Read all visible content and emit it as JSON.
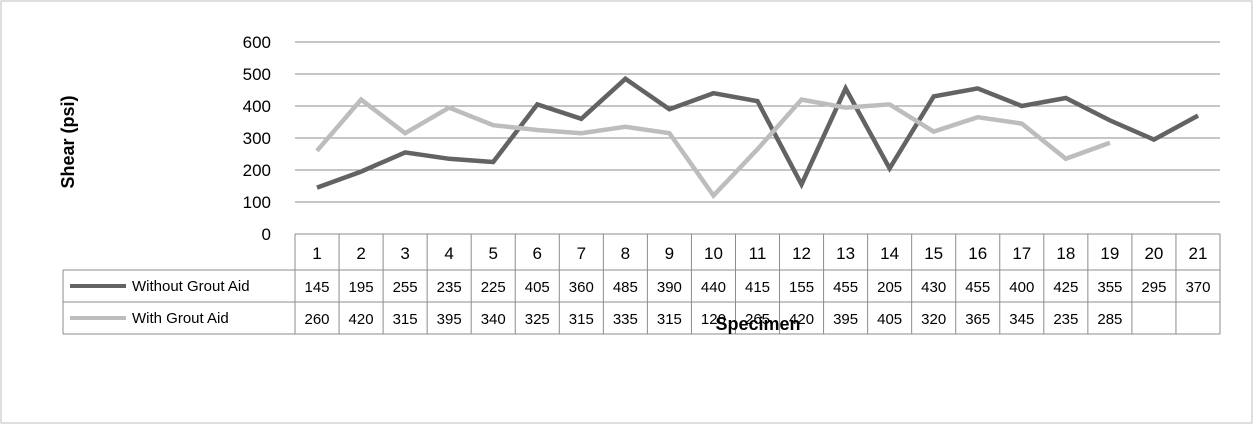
{
  "chart_data": {
    "type": "line",
    "title": "",
    "xlabel": "Specimen",
    "ylabel": "Shear (psi)",
    "ylim": [
      0,
      600
    ],
    "yticks": [
      0,
      100,
      200,
      300,
      400,
      500,
      600
    ],
    "grid": true,
    "legend_position": "data-table-left",
    "categories": [
      "1",
      "2",
      "3",
      "4",
      "5",
      "6",
      "7",
      "8",
      "9",
      "10",
      "11",
      "12",
      "13",
      "14",
      "15",
      "16",
      "17",
      "18",
      "19",
      "20",
      "21"
    ],
    "series": [
      {
        "name": "Without Grout Aid",
        "color": "#636363",
        "values": [
          145,
          195,
          255,
          235,
          225,
          405,
          360,
          485,
          390,
          440,
          415,
          155,
          455,
          205,
          430,
          455,
          400,
          425,
          355,
          295,
          370
        ]
      },
      {
        "name": "With Grout Aid",
        "color": "#bdbdbd",
        "values": [
          260,
          420,
          315,
          395,
          340,
          325,
          315,
          335,
          315,
          120,
          265,
          420,
          395,
          405,
          320,
          365,
          345,
          235,
          285,
          null,
          null
        ]
      }
    ]
  }
}
